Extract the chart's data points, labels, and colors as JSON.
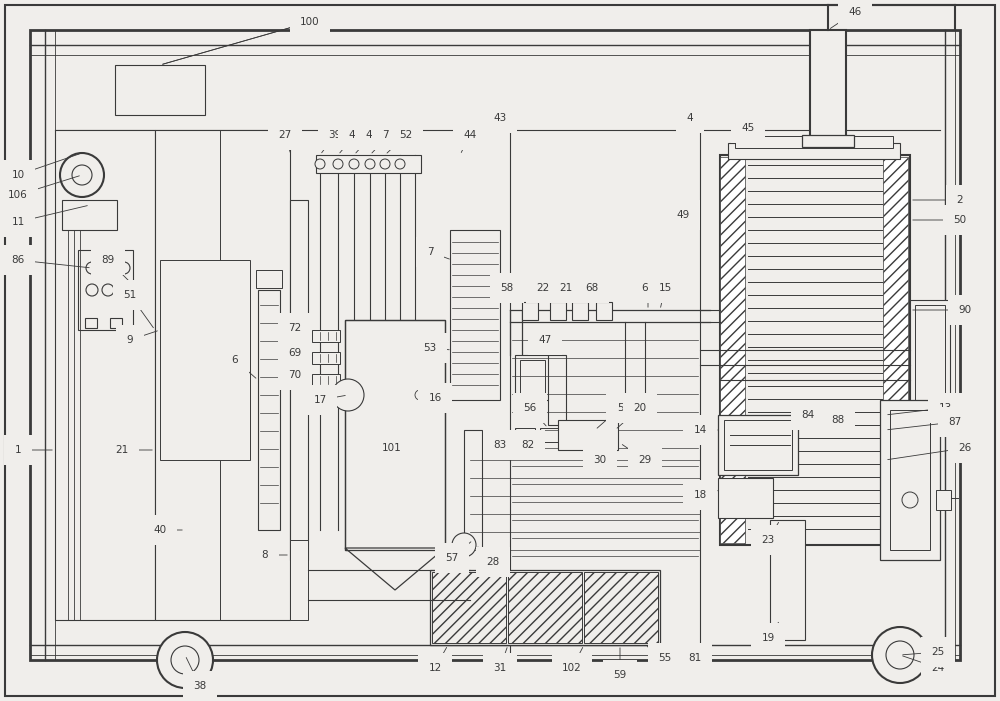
{
  "bg_color": "#f0eeeb",
  "line_color": "#3a3a3a",
  "figsize": [
    10.0,
    7.01
  ],
  "dpi": 100,
  "lw": 0.8,
  "lw2": 1.4
}
